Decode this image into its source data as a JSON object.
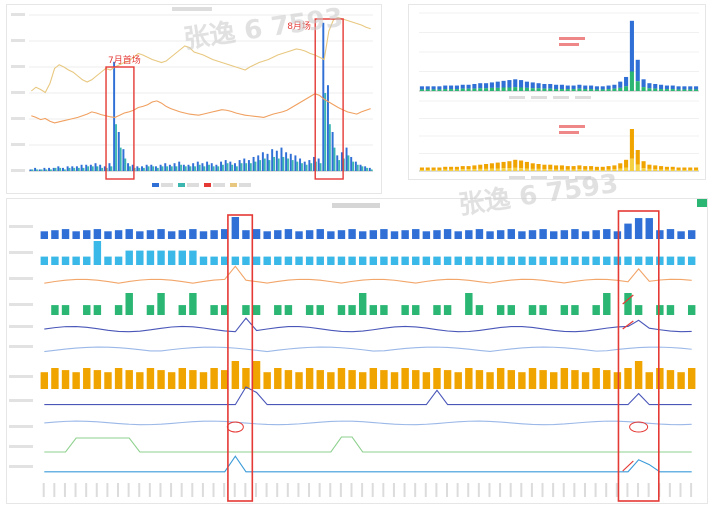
{
  "annotations": {
    "july": "7月首场",
    "august": "8月场",
    "watermark": "张逸 6 7593"
  },
  "colors": {
    "blue": "#2f6fd6",
    "teal": "#3cb7b0",
    "green": "#2bb673",
    "orange": "#f0a400",
    "gold": "#e8c880",
    "cyan": "#3ab8e8",
    "navy": "#4a57b8",
    "red": "#e53935",
    "lightOrange": "#f2a66a"
  },
  "chart_data": [
    {
      "type": "bar",
      "series": [
        {
          "values": [
            1,
            2,
            1,
            2,
            2,
            2,
            3,
            2,
            3,
            3,
            3,
            4,
            4,
            4,
            5,
            4,
            3,
            5,
            70,
            25,
            14,
            5,
            4,
            3,
            3,
            4,
            4,
            3,
            4,
            5,
            4,
            5,
            6,
            4,
            4,
            5,
            6,
            5,
            6,
            5,
            4,
            6,
            7,
            6,
            5,
            7,
            8,
            7,
            9,
            10,
            12,
            11,
            14,
            13,
            15,
            12,
            11,
            10,
            8,
            6,
            7,
            9,
            8,
            95,
            55,
            25,
            10,
            12,
            15,
            9,
            6,
            4,
            3,
            2
          ]
        },
        {
          "values": [
            1,
            1,
            1,
            1,
            1,
            2,
            2,
            1,
            2,
            2,
            2,
            2,
            3,
            3,
            3,
            2,
            2,
            3,
            30,
            15,
            8,
            3,
            2,
            2,
            2,
            3,
            3,
            2,
            3,
            3,
            3,
            3,
            4,
            3,
            3,
            3,
            4,
            3,
            4,
            3,
            3,
            4,
            5,
            4,
            3,
            5,
            5,
            5,
            6,
            7,
            8,
            7,
            9,
            8,
            9,
            8,
            7,
            6,
            5,
            4,
            5,
            6,
            5,
            50,
            30,
            15,
            7,
            8,
            10,
            6,
            4,
            3,
            2,
            1
          ]
        }
      ],
      "line_series": [
        {
          "values": [
            55,
            52,
            48,
            50,
            45,
            42,
            44,
            46,
            48,
            50,
            52,
            55,
            58,
            62,
            60,
            57,
            55,
            53,
            52,
            56,
            60,
            62,
            65,
            70,
            72,
            75,
            80,
            82,
            78,
            72,
            68,
            65,
            62,
            60,
            58,
            57,
            56,
            58,
            60,
            62,
            64,
            66,
            65,
            63,
            60,
            58,
            56,
            55,
            54,
            53,
            52,
            55,
            58,
            60,
            62,
            65,
            70,
            75,
            80,
            85,
            90,
            95,
            92,
            85,
            80,
            75,
            70,
            66,
            62,
            60,
            58,
            62,
            65,
            68
          ]
        },
        {
          "values": [
            80,
            85,
            82,
            78,
            90,
            110,
            115,
            112,
            108,
            105,
            100,
            95,
            92,
            95,
            100,
            105,
            110,
            108,
            112,
            115,
            118,
            120,
            125,
            130,
            128,
            125,
            122,
            120,
            118,
            120,
            125,
            130,
            135,
            140,
            138,
            132,
            130,
            128,
            125,
            122,
            120,
            118,
            116,
            114,
            112,
            110,
            108,
            112,
            115,
            118,
            120,
            122,
            125,
            128,
            130,
            132,
            134,
            136,
            135,
            133,
            130,
            128,
            125,
            122,
            160,
            175,
            178,
            176,
            174,
            172,
            170,
            168,
            165,
            163
          ]
        }
      ]
    },
    {
      "type": "bar",
      "series": [
        {
          "values": [
            6,
            6,
            6,
            6,
            7,
            7,
            7,
            8,
            8,
            9,
            10,
            10,
            11,
            12,
            13,
            14,
            15,
            14,
            12,
            11,
            10,
            9,
            9,
            8,
            8,
            7,
            7,
            8,
            7,
            7,
            6,
            6,
            7,
            8,
            12,
            18,
            90,
            40,
            15,
            10,
            9,
            8,
            7,
            7,
            6,
            6,
            6,
            6
          ]
        },
        {
          "values": [
            4,
            4,
            4,
            4,
            5,
            5,
            5,
            6,
            6,
            6,
            7,
            7,
            8,
            8,
            9,
            9,
            10,
            9,
            8,
            7,
            7,
            6,
            6,
            5,
            5,
            5,
            5,
            6,
            5,
            5,
            4,
            4,
            5,
            6,
            8,
            12,
            50,
            25,
            10,
            7,
            6,
            5,
            5,
            5,
            4,
            4,
            4,
            4
          ]
        },
        {
          "values": [
            5,
            5,
            5,
            5,
            6,
            6,
            6,
            7,
            7,
            8,
            9,
            10,
            11,
            12,
            13,
            14,
            16,
            15,
            13,
            11,
            10,
            9,
            9,
            8,
            8,
            7,
            7,
            8,
            7,
            7,
            6,
            6,
            7,
            8,
            11,
            16,
            60,
            30,
            14,
            9,
            8,
            7,
            6,
            6,
            5,
            5,
            5,
            5
          ]
        },
        {
          "values": [
            3,
            3,
            3,
            3,
            4,
            4,
            4,
            5,
            5,
            5,
            6,
            6,
            7,
            7,
            8,
            8,
            9,
            8,
            7,
            6,
            6,
            5,
            5,
            4,
            4,
            4,
            4,
            5,
            4,
            4,
            3,
            3,
            4,
            5,
            7,
            10,
            35,
            18,
            8,
            6,
            5,
            4,
            4,
            4,
            3,
            3,
            3,
            3
          ]
        }
      ]
    },
    {
      "type": "bar",
      "rows": 11,
      "x": 62
    }
  ]
}
